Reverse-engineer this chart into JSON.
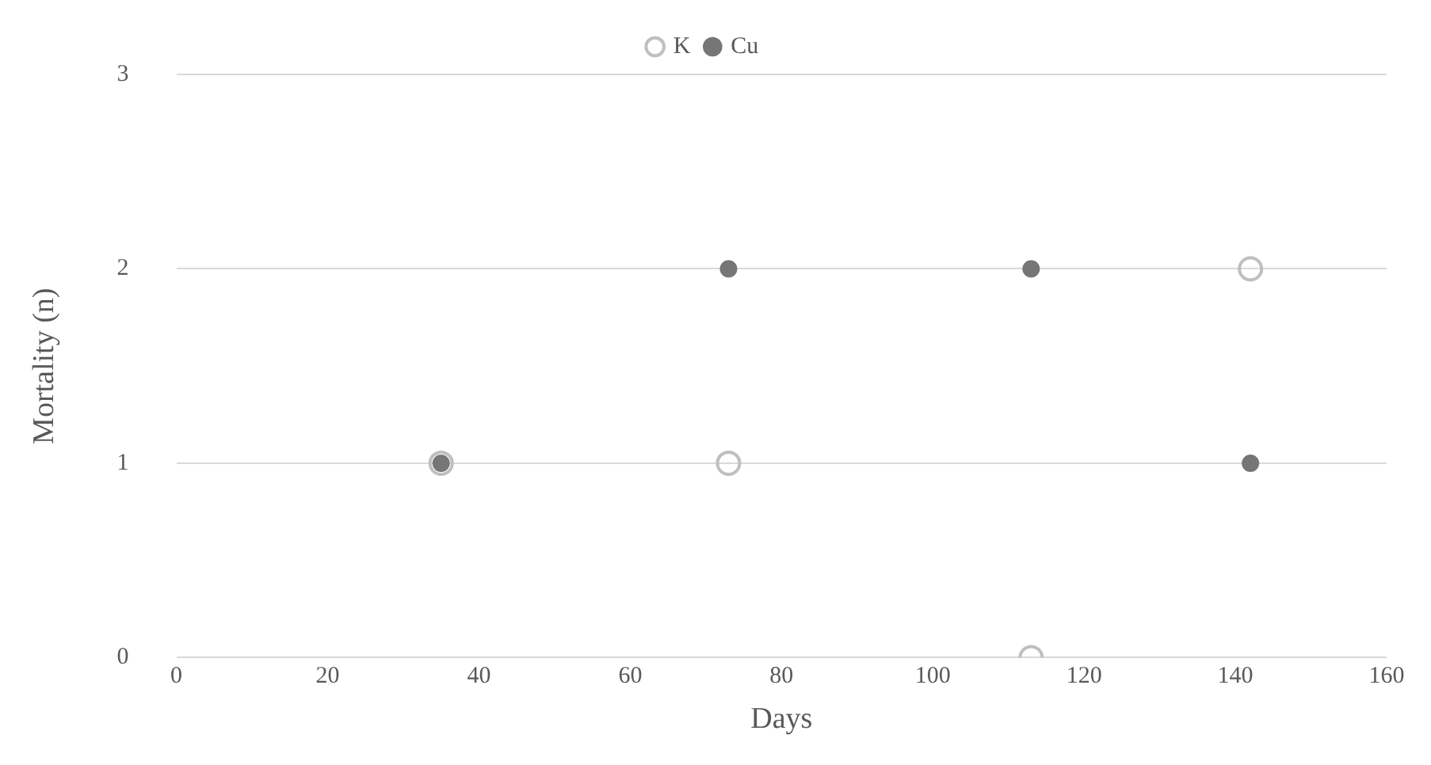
{
  "chart_data": {
    "type": "scatter",
    "xlabel": "Days",
    "ylabel": "Mortality (n)",
    "series": [
      {
        "name": "K",
        "color": "#bfbfbf",
        "x": [
          35,
          73,
          113,
          142
        ],
        "values": [
          1,
          1,
          0,
          2
        ]
      },
      {
        "name": "Cu",
        "color": "#767676",
        "x": [
          35,
          73,
          113,
          142
        ],
        "values": [
          1,
          2,
          2,
          1
        ]
      }
    ],
    "xlim": [
      0,
      160
    ],
    "xticks": [
      0,
      20,
      40,
      60,
      80,
      100,
      120,
      140,
      160
    ],
    "ylim": [
      0,
      3
    ],
    "yticks": [
      0,
      1,
      2,
      3
    ],
    "grid": "y",
    "legend": "top",
    "marker": "circle"
  }
}
